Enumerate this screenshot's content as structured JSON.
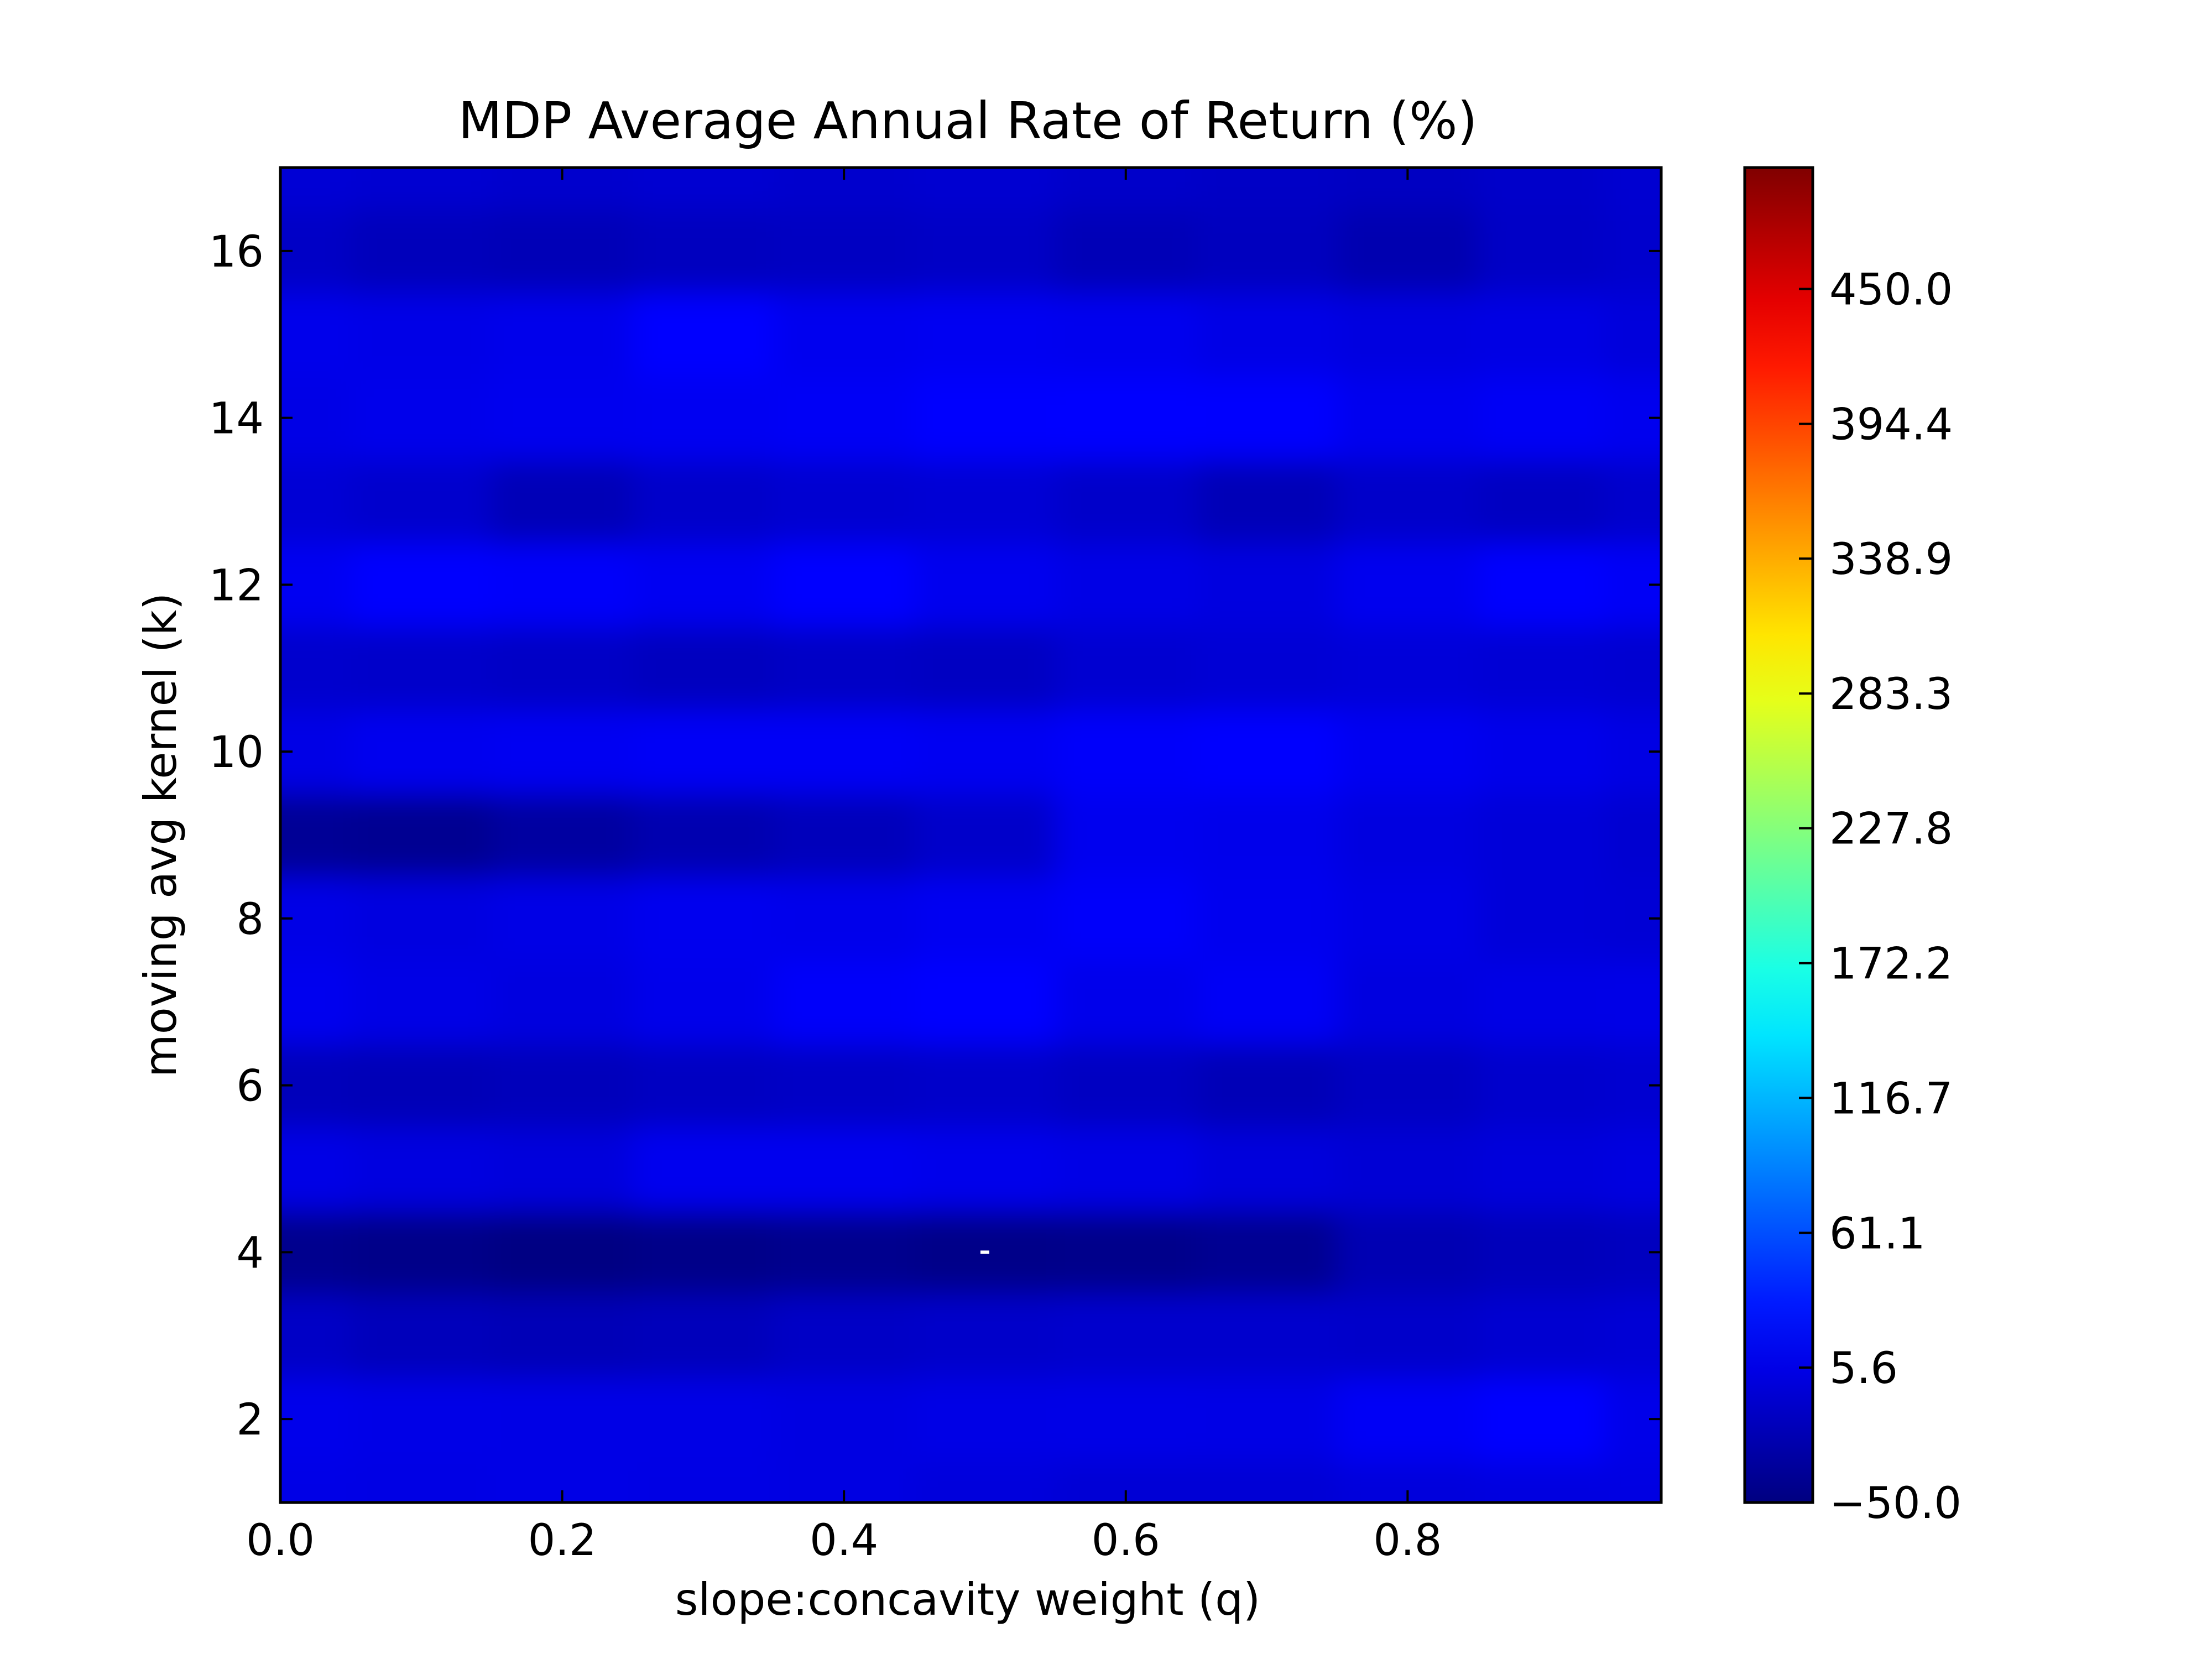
{
  "chart_data": {
    "type": "heatmap",
    "title": "MDP Average Annual Rate of Return (%)",
    "xlabel": "slope:concavity weight (q)",
    "ylabel": "moving avg kernel (k)",
    "xlim": [
      0.0,
      0.98
    ],
    "ylim": [
      1,
      17
    ],
    "x_ticks": [
      0.0,
      0.2,
      0.4,
      0.6,
      0.8
    ],
    "x_tick_labels": [
      "0.0",
      "0.2",
      "0.4",
      "0.6",
      "0.8"
    ],
    "y_ticks": [
      2,
      4,
      6,
      8,
      10,
      12,
      14,
      16
    ],
    "y_tick_labels": [
      "2",
      "4",
      "6",
      "8",
      "10",
      "12",
      "14",
      "16"
    ],
    "x": [
      0.0,
      0.1,
      0.2,
      0.3,
      0.4,
      0.5,
      0.6,
      0.7,
      0.8,
      0.9,
      0.98
    ],
    "y": [
      1,
      2,
      3,
      4,
      5,
      6,
      7,
      8,
      9,
      10,
      11,
      12,
      13,
      14,
      15,
      16,
      17
    ],
    "z": [
      [
        5,
        4,
        5,
        4,
        3,
        0,
        -4,
        -4,
        0,
        2,
        3
      ],
      [
        8,
        6,
        5,
        5,
        3,
        5,
        6,
        5,
        14,
        20,
        7
      ],
      [
        -12,
        -18,
        -20,
        -18,
        -12,
        -10,
        -8,
        -8,
        -10,
        -6,
        -4
      ],
      [
        -42,
        -45,
        -48,
        -45,
        -42,
        -45,
        -44,
        -40,
        -22,
        -18,
        -15
      ],
      [
        5,
        2,
        0,
        10,
        10,
        8,
        5,
        0,
        -4,
        0,
        2
      ],
      [
        -18,
        -20,
        -18,
        -14,
        -12,
        -10,
        -14,
        -20,
        -14,
        -8,
        -6
      ],
      [
        10,
        5,
        2,
        8,
        16,
        20,
        8,
        14,
        2,
        5,
        6
      ],
      [
        5,
        2,
        5,
        10,
        8,
        12,
        16,
        10,
        5,
        -2,
        -4
      ],
      [
        -38,
        -40,
        -32,
        -24,
        -18,
        -10,
        10,
        8,
        2,
        -2,
        -6
      ],
      [
        5,
        10,
        12,
        14,
        14,
        12,
        16,
        18,
        12,
        8,
        4
      ],
      [
        -8,
        -10,
        -12,
        -16,
        -12,
        -14,
        -6,
        -4,
        -2,
        -4,
        -6
      ],
      [
        12,
        18,
        16,
        12,
        20,
        10,
        5,
        2,
        10,
        18,
        14
      ],
      [
        -4,
        -8,
        -20,
        -10,
        -6,
        -4,
        -10,
        -20,
        -10,
        -14,
        -8
      ],
      [
        5,
        8,
        10,
        12,
        14,
        18,
        20,
        18,
        10,
        14,
        10
      ],
      [
        8,
        6,
        8,
        20,
        10,
        12,
        10,
        5,
        2,
        4,
        0
      ],
      [
        -12,
        -18,
        -20,
        -16,
        -14,
        -12,
        -20,
        -16,
        -24,
        -12,
        -8
      ],
      [
        -4,
        -6,
        -8,
        -6,
        -8,
        -6,
        -10,
        -12,
        -14,
        -10,
        -6
      ]
    ],
    "colorbar": {
      "min": -50.0,
      "max": 500.0,
      "tick_values": [
        -50.0,
        5.6,
        61.1,
        116.7,
        172.2,
        227.8,
        283.3,
        338.9,
        394.4,
        450.0
      ],
      "tick_labels": [
        "−50.0",
        "5.6",
        "61.1",
        "116.7",
        "172.2",
        "227.8",
        "283.3",
        "338.9",
        "394.4",
        "450.0"
      ],
      "colormap": "jet"
    },
    "annotations": [
      {
        "type": "white-speck",
        "x": 0.5,
        "y": 4
      }
    ],
    "grid": false,
    "legend": "none"
  }
}
